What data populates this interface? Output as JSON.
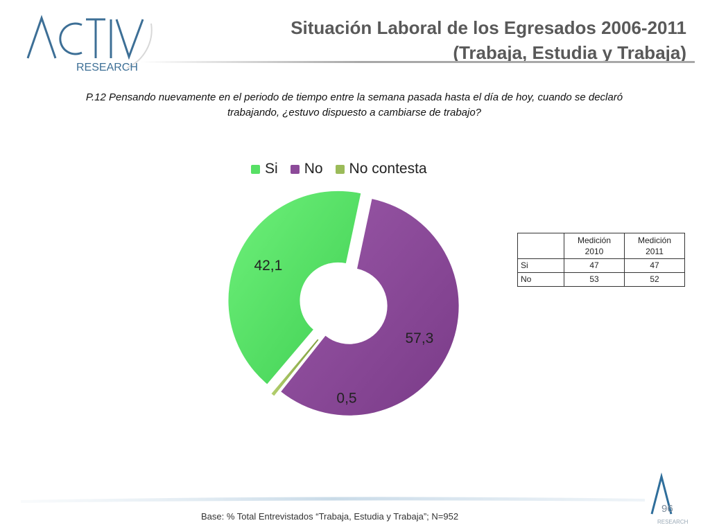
{
  "logo": {
    "brand": "ACTIVA",
    "sub": "RESEARCH"
  },
  "header": {
    "title_line1": "Situación Laboral de los Egresados 2006-2011",
    "title_line2": "(Trabaja, Estudia y Trabaja)"
  },
  "question": {
    "line1": "P.12 Pensando nuevamente en el periodo de tiempo entre la semana pasada hasta el día de hoy, cuando se declaró",
    "line2": "trabajando, ¿estuvo dispuesto a cambiarse de trabajo?"
  },
  "colors": {
    "si": "#57e065",
    "no": "#8c4a99",
    "no_contesta": "#9bbb59",
    "title": "#595959"
  },
  "chart_data": {
    "type": "pie",
    "variant": "exploded-doughnut",
    "title": "",
    "categories": [
      "Si",
      "No",
      "No contesta"
    ],
    "values": [
      42.1,
      57.3,
      0.5
    ],
    "value_labels": [
      "42,1",
      "57,3",
      "0,5"
    ],
    "legend": {
      "placement": "top",
      "items": [
        "Si",
        "No",
        "No contesta"
      ]
    }
  },
  "table": {
    "headers": [
      "",
      "Medición 2010",
      "Medición 2011"
    ],
    "header_lines": [
      [
        "",
        ""
      ],
      [
        "Medición",
        "2010"
      ],
      [
        "Medición",
        "2011"
      ]
    ],
    "rows": [
      [
        "Si",
        "47",
        "47"
      ],
      [
        "No",
        "53",
        "52"
      ]
    ]
  },
  "footer": {
    "base_text": "Base: % Total Entrevistados “Trabaja, Estudia y Trabaja”; N=952",
    "page_number": "96",
    "small_logo_text": "RESEARCH"
  }
}
